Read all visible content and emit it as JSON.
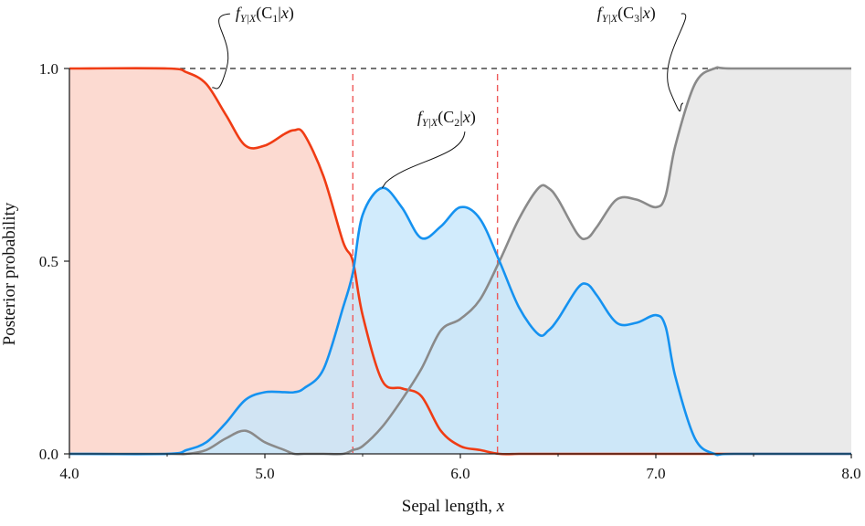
{
  "chart_data": {
    "type": "area",
    "title": "",
    "xlabel": "Sepal length, x",
    "ylabel": "Posterior probability",
    "xlim": [
      4.0,
      8.0
    ],
    "ylim": [
      0.0,
      1.0
    ],
    "x_ticks": [
      "4.0",
      "5.0",
      "6.0",
      "7.0",
      "8.0"
    ],
    "y_ticks": [
      "0.0",
      "0.5",
      "1.0"
    ],
    "x_tick_values": [
      4.0,
      5.0,
      6.0,
      7.0,
      8.0
    ],
    "y_tick_values": [
      0.0,
      0.5,
      1.0
    ],
    "x_minor_ticks": [
      4.5,
      5.5,
      6.5,
      7.5
    ],
    "reference_line_y": 1.0,
    "decision_boundaries": [
      5.45,
      6.19
    ],
    "x": [
      4.0,
      4.5,
      4.6,
      4.7,
      4.8,
      4.9,
      5.0,
      5.1,
      5.15,
      5.2,
      5.3,
      5.4,
      5.45,
      5.5,
      5.6,
      5.7,
      5.8,
      5.9,
      6.0,
      6.1,
      6.2,
      6.3,
      6.4,
      6.45,
      6.5,
      6.6,
      6.65,
      6.7,
      6.8,
      6.9,
      7.0,
      7.05,
      7.1,
      7.2,
      7.3,
      7.4,
      8.0
    ],
    "series": [
      {
        "name": "C1",
        "label_parts": [
          "f",
          "Y|X",
          "(C",
          "1",
          "|",
          "x",
          ")"
        ],
        "color": "#f03c14",
        "fill": "#fbd3c9",
        "values": [
          1.0,
          1.0,
          0.99,
          0.96,
          0.88,
          0.8,
          0.8,
          0.83,
          0.84,
          0.83,
          0.72,
          0.55,
          0.5,
          0.36,
          0.19,
          0.17,
          0.15,
          0.06,
          0.02,
          0.01,
          0.0,
          0.0,
          0.0,
          0.0,
          0.0,
          0.0,
          0.0,
          0.0,
          0.0,
          0.0,
          0.0,
          0.0,
          0.0,
          0.0,
          0.0,
          0.0,
          0.0
        ]
      },
      {
        "name": "C2",
        "label_parts": [
          "f",
          "Y|X",
          "(C",
          "2",
          "|",
          "x",
          ")"
        ],
        "color": "#1592f0",
        "fill": "#c6e6fb",
        "values": [
          0.0,
          0.0,
          0.01,
          0.03,
          0.08,
          0.14,
          0.16,
          0.16,
          0.16,
          0.17,
          0.22,
          0.38,
          0.47,
          0.62,
          0.69,
          0.64,
          0.56,
          0.59,
          0.64,
          0.61,
          0.5,
          0.38,
          0.31,
          0.32,
          0.35,
          0.43,
          0.44,
          0.41,
          0.34,
          0.34,
          0.36,
          0.33,
          0.2,
          0.04,
          0.0,
          0.0,
          0.0
        ]
      },
      {
        "name": "C3",
        "label_parts": [
          "f",
          "Y|X",
          "(C",
          "3",
          "|",
          "x",
          ")"
        ],
        "color": "#8a8a8a",
        "fill": "#e6e6e6",
        "values": [
          0.0,
          0.0,
          0.0,
          0.01,
          0.04,
          0.06,
          0.03,
          0.01,
          0.0,
          0.0,
          0.0,
          0.0,
          0.01,
          0.02,
          0.07,
          0.14,
          0.22,
          0.32,
          0.35,
          0.4,
          0.5,
          0.61,
          0.69,
          0.69,
          0.66,
          0.57,
          0.56,
          0.59,
          0.66,
          0.66,
          0.64,
          0.67,
          0.8,
          0.96,
          1.0,
          1.0,
          1.0
        ]
      }
    ],
    "annotations": [
      {
        "series": "C1",
        "text_x": 4.85,
        "text_y": 1.13,
        "point_x": 4.73,
        "point_y": 0.95
      },
      {
        "series": "C2",
        "text_x": 5.78,
        "text_y": 0.86,
        "point_x": 5.6,
        "point_y": 0.69
      },
      {
        "series": "C3",
        "text_x": 6.7,
        "text_y": 1.13,
        "point_x": 7.14,
        "point_y": 0.91
      }
    ]
  }
}
